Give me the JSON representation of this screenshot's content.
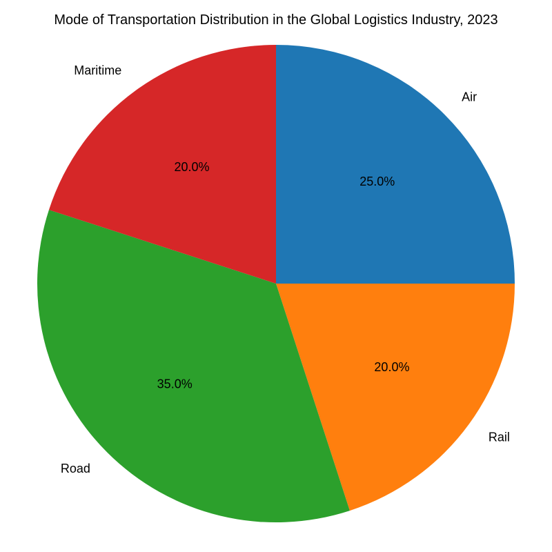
{
  "chart_data": {
    "type": "pie",
    "title": "Mode of Transportation Distribution in the Global Logistics Industry, 2023",
    "slices": [
      {
        "label": "Air",
        "value": 25.0,
        "pct_label": "25.0%",
        "color": "#1f77b4"
      },
      {
        "label": "Rail",
        "value": 20.0,
        "pct_label": "20.0%",
        "color": "#ff7f0e"
      },
      {
        "label": "Road",
        "value": 35.0,
        "pct_label": "35.0%",
        "color": "#2ca02c"
      },
      {
        "label": "Maritime",
        "value": 20.0,
        "pct_label": "20.0%",
        "color": "#d62728"
      }
    ],
    "start_angle_deg": 90,
    "direction": "clockwise",
    "legend": "none"
  }
}
